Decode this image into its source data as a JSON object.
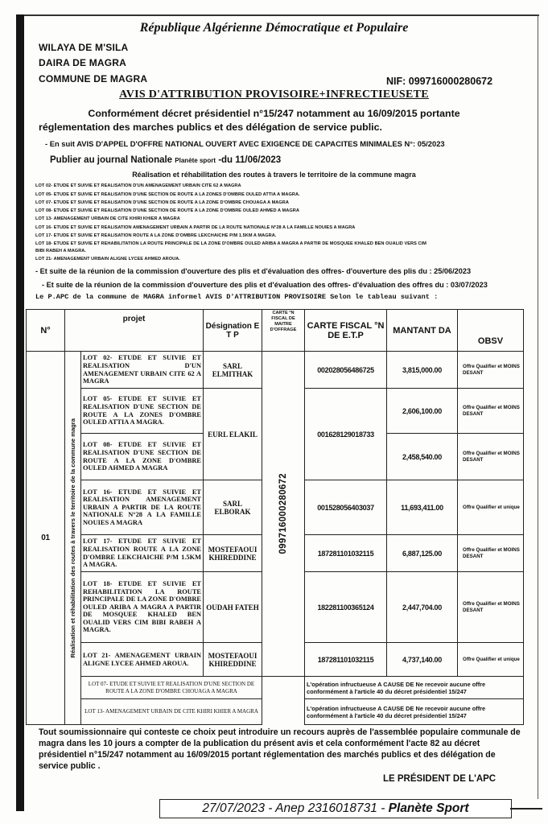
{
  "header": {
    "republic": "République Algérienne Démocratique et Populaire",
    "wilaya": "WILAYA DE M'SILA",
    "daira": "DAIRA DE  MAGRA",
    "commune": "COMMUNE DE MAGRA",
    "nif": "NIF:  099716000280672",
    "title": "AVIS D'ATTRIBUTION PROVISOIRE+INFRECTIEUSETE"
  },
  "intro": {
    "line1": "Conformément  décret  présidentiel  n°15/247 notamment  au 16/09/2015 portante",
    "line2": "réglementation des marches publics et des délégation de service public.",
    "suit": "- En suit AVIS D'APPEL D'OFFRE NATIONAL OUVERT AVEC EXIGENCE DE CAPACITES MINIMALES N°: 05/2023",
    "publier": "Publier au journal  Nationale",
    "journal": "Planète sport",
    "date": "-du 11/06/2023",
    "subject": "Réalisation et réhabilitation  des routes à travers  le territoire de  la commune magra"
  },
  "lots": [
    "LOT 02- ETUDE ET SUIVIE ET REALISATION D'UN AMENAGEMENT URBAIN CITE 62  A MAGRA",
    "LOT 05- ETUDE ET SUIVIE ET REALISATION  D'UNE SECTION DE ROUTE A LA ZONES D'OMBRE OULED ATTIA A MAGRA.",
    "LOT 07- ETUDE ET SUIVIE ET REALISATION D'UNE SECTION DE ROUTE A LA  ZONE D'OMBRE CHOUAGA  A MAGRA",
    "LOT 08- ETUDE ET SUIVIE ET REALISATION D'UNE SECTION DE ROUTE A LA  ZONE D'OMBRE OULED AHMED  A MAGRA",
    "LOT 13- AMENAGEMENT URBAIN DE CITE KHIRI KHIER A MAGRA",
    "LOT 16- ETUDE ET SUIVIE ET REALISATION AMENAGEMENT URBAIN A PARTIR DE LA ROUTE NATIONALE N°28 A LA FAMILLE NOUIES A MAGRA",
    "LOT 17- ETUDE ET SUIVIE ET REALISATION ROUTE A  LA ZONE D'OMBRE  LEKCHAICHE P/M 1.5KM A MAGRA.",
    "LOT 18- ETUDE ET SUIVIE ET REHABILITATION LA ROUTE PRINCIPALE DE  LA  ZONE D'OMBRE OULED ARIBA A MAGRA A PARTIR DE MOSQUEE KHALED BEN OUALID VERS CIM",
    "BIBI RABEH A MAGRA.",
    "LOT 21- AMENAGEMENT URBAIN ALIGNE LYCEE AHMED AROUA."
  ],
  "meetings": {
    "ouverture": "- Et suite de la réunion de la commission d'ouverture des plis et d'évaluation des offres- d'ouverture des plis du : 25/06/2023",
    "evaluation": "- Et suite de la réunion de la commission d'ouverture des plis et d'évaluation des offres- d'évaluation des offres du : 03/07/2023",
    "informe": "Le P.APC  de la commune de MAGRA informel AVIS D'ATTRIBUTION PROVISOIRE Selon le tableau suivant :"
  },
  "table": {
    "headers": {
      "n": "N°",
      "projet": "projet",
      "designation": "Désignation E T P",
      "carte_maitre": "CARTE °N FISCAL DE MAITRE D'OFFRAGE",
      "carte_etp": "CARTE FISCAL °N DE E.T.P",
      "montant": "MANTANT DA",
      "obsv": "OBSV"
    },
    "n": "01",
    "subject_vertical": "Réalisation et réhabilitation des routes à travers  le territoire de  la commune magra",
    "carte_maitre": "099716000280672",
    "rows": [
      {
        "projet": "LOT 02- ETUDE ET SUIVIE ET REALISATION D'UN AMENAGEMENT URBAIN CITE 62 A MAGRA",
        "designation": "SARL ELMITHAK",
        "carte": "002028056486725",
        "montant": "3,815,000.00",
        "obsv": "Offre Qualifier et MOINS DESANT"
      },
      {
        "projet": "LOT 05- ETUDE ET SUIVIE ET REALISATION D'UNE SECTION DE ROUTE A LA ZONES D'OMBRE OULED ATTIA A MAGRA.",
        "designation": "EURL ELAKIL",
        "carte": "001628129018733",
        "montant": "2,606,100.00",
        "obsv": "Offre Qualifier et MOINS DESANT"
      },
      {
        "projet": "LOT 08- ETUDE ET SUIVIE ET REALISATION D'UNE SECTION DE ROUTE A LA ZONE D'OMBRE OULED AHMED A MAGRA",
        "montant": "2,458,540.00",
        "obsv": "Offre Qualifier et MOINS DESANT"
      },
      {
        "projet": "LOT 16- ETUDE ET SUIVIE ET REALISATION AMENAGEMENT URBAIN A PARTIR DE LA ROUTE NATIONALE N°28 A LA FAMILLE NOUIES A MAGRA",
        "designation": "SARL ELBORAK",
        "carte": "001528056403037",
        "montant": "11,693,411.00",
        "obsv": "Offre Qualifier et unique"
      },
      {
        "projet": "LOT 17- ETUDE ET SUIVIE ET REALISATION ROUTE A LA ZONE D'OMBRE LEKCHAICHE P/M 1.5KM A MAGRA.",
        "designation": "MOSTEFAOUI KHIREDDINE",
        "carte": "187281101032115",
        "montant": "6,887,125.00",
        "obsv": "Offre Qualifier et MOINS DESANT"
      },
      {
        "projet": "LOT 18- ETUDE ET SUIVIE ET REHABILITATION LA ROUTE PRINCIPALE DE LA ZONE D'OMBRE OULED ARIBA A MAGRA A PARTIR DE MOSQUEE KHALED BEN OUALID VERS CIM BIBI RABEH A MAGRA.",
        "designation": "OUDAH FATEH",
        "carte": "182281100365124",
        "montant": "2,447,704.00",
        "obsv": "Offre Qualifier et MOINS DESANT"
      },
      {
        "projet": "LOT 21- AMENAGEMENT URBAIN ALIGNE LYCEE AHMED AROUA.",
        "designation": "MOSTEFAOUI KHIREDDINE",
        "carte": "187281101032115",
        "montant": "4,737,140.00",
        "obsv": "Offre Qualifier et unique"
      }
    ],
    "infructueux": [
      {
        "projet": "LOT 07- ETUDE ET SUIVIE ET REALISATION D'UNE SECTION DE ROUTE A LA  ZONE D'OMBRE CHOUAGA A MAGRA",
        "note": "L'opération infructueuse A CAUSE DE Ne recevoir aucune offre conformément à l'article 40 du décret présidentiel 15/247"
      },
      {
        "projet": "LOT 13- AMENAGEMENT URBAIN DE CITE KHIRI KHIER A MAGRA",
        "note": "L'opération infructueuse A CAUSE DE Ne recevoir aucune offre conformément à l'article 40 du décret présidentiel 15/247"
      }
    ]
  },
  "closing": {
    "text": "Tout soumissionnaire qui conteste ce choix peut introduire un recours auprès de l'assemblée populaire communale de magra dans les 10 jours a compter de la publication du présent  avis et cela conformément  l'acte 82 au décret présidentiel n°15/247 notamment  au 16/09/2015 portant  réglementation des marchés  publics et des délégation de service public .",
    "signature": "LE PRÉSIDENT DE L'APC"
  },
  "footer": {
    "date": "27/07/2023",
    "anep": " - Anep 2316018731 - ",
    "paper": "Planète Sport"
  }
}
